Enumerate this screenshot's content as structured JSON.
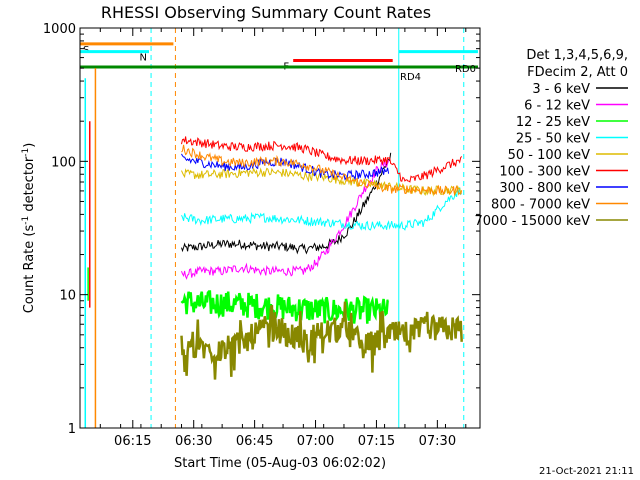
{
  "chart_data": {
    "type": "line",
    "title": "RHESSI Observing Summary Count Rates",
    "xlabel": "Start Time (05-Aug-03 06:02:02)",
    "ylabel_main": "Count Rate (s",
    "ylabel_sup": "-1",
    "ylabel_tail": " detector",
    "ylabel_sup2": "-1",
    "ylabel_close": ")",
    "x_ticks": [
      "06:15",
      "06:30",
      "06:45",
      "07:00",
      "07:15",
      "07:30"
    ],
    "x_tick_minutes": [
      13,
      28,
      43,
      58,
      73,
      88
    ],
    "xlim_minutes": [
      0,
      98.5
    ],
    "y_scale": "log",
    "ylim": [
      1,
      1000
    ],
    "y_ticks": [
      "1",
      "10",
      "100",
      "1000"
    ],
    "legend_header": [
      "Det 1,3,4,5,6,9,",
      "FDecim 2, Att 0"
    ],
    "series": [
      {
        "name": "3 - 6 keV",
        "color": "#000000",
        "x": [
          25,
          30,
          35,
          40,
          45,
          50,
          55,
          60,
          63,
          66,
          69,
          72,
          75,
          76.5
        ],
        "values": [
          22,
          23,
          24,
          24,
          23,
          23,
          22,
          23,
          25,
          30,
          42,
          60,
          90,
          108
        ]
      },
      {
        "name": "6 - 12 keV",
        "color": "#ff00ff",
        "x": [
          25,
          30,
          35,
          40,
          45,
          50,
          55,
          58,
          61,
          64,
          67,
          70,
          73,
          76
        ],
        "values": [
          14,
          15,
          15,
          16,
          15,
          15,
          15,
          17,
          22,
          30,
          42,
          62,
          85,
          100
        ]
      },
      {
        "name": "12 - 25 keV",
        "color": "#00ff00",
        "x": [
          25,
          30,
          35,
          40,
          45,
          50,
          55,
          60,
          65,
          70,
          76
        ],
        "values": [
          9,
          8.5,
          8.6,
          8.4,
          8.2,
          8,
          7.8,
          7.6,
          7.6,
          7.6,
          7.5
        ]
      },
      {
        "name": "25 - 50 keV",
        "color": "#00ffff",
        "x": [
          25,
          30,
          35,
          40,
          45,
          50,
          55,
          60,
          65,
          70,
          76,
          80,
          85,
          90,
          94
        ],
        "values": [
          38,
          36,
          37,
          37,
          38,
          37,
          36,
          35,
          34,
          33,
          33,
          33,
          35,
          50,
          62
        ]
      },
      {
        "name": "50 - 100 keV",
        "color": "#ddbb00",
        "x": [
          25,
          30,
          35,
          40,
          45,
          50,
          55,
          60,
          65,
          70,
          76,
          80,
          85,
          90,
          94
        ],
        "values": [
          80,
          79,
          80,
          82,
          83,
          82,
          78,
          76,
          72,
          68,
          65,
          62,
          60,
          61,
          60
        ]
      },
      {
        "name": "100 - 300 keV",
        "color": "#ff0000",
        "x": [
          25,
          30,
          35,
          40,
          45,
          50,
          55,
          60,
          65,
          70,
          76,
          80,
          85,
          90,
          94
        ],
        "values": [
          145,
          138,
          130,
          128,
          130,
          132,
          125,
          110,
          102,
          101,
          103,
          70,
          78,
          92,
          102
        ]
      },
      {
        "name": "300 - 800 keV",
        "color": "#0000ff",
        "x": [
          25,
          30,
          35,
          40,
          45,
          50,
          55,
          60,
          65,
          70,
          76
        ],
        "values": [
          105,
          98,
          92,
          90,
          98,
          100,
          90,
          80,
          78,
          80,
          85
        ]
      },
      {
        "name": "800 - 7000 keV",
        "color": "#ff8800",
        "x": [
          25,
          30,
          35,
          40,
          45,
          50,
          55,
          60,
          65,
          70,
          76,
          80,
          85,
          90,
          94
        ],
        "values": [
          125,
          110,
          100,
          97,
          100,
          100,
          95,
          85,
          75,
          68,
          62,
          62,
          61,
          60,
          61
        ]
      },
      {
        "name": "7000 - 15000 keV",
        "color": "#888800",
        "x": [
          25,
          30,
          35,
          40,
          45,
          50,
          55,
          60,
          65,
          70,
          76,
          80,
          85,
          90,
          94
        ],
        "values": [
          4.2,
          4,
          3.8,
          4.3,
          5.5,
          5.4,
          4.4,
          5.3,
          5.4,
          4,
          5,
          5,
          5.5,
          5.5,
          5.5
        ]
      }
    ],
    "flag_bars": [
      {
        "label": "S",
        "color": "#ff8800",
        "x_start": 0,
        "x_end": 23,
        "value": 760
      },
      {
        "label": "N",
        "color": "#00ffff",
        "x_start": 0,
        "x_end": 17,
        "value": 665
      },
      {
        "label": "F",
        "color": "#ff0000",
        "x_start": 52.5,
        "x_end": 77,
        "value": 570
      },
      {
        "label": "",
        "color": "#00ffff",
        "x_start": 78.5,
        "x_end": 98,
        "value": 665
      },
      {
        "label": "RD0",
        "color": "#008800",
        "x_start": 0,
        "x_end": 98,
        "value": 510
      }
    ],
    "flag_label_rd4": "RD4",
    "vlines": [
      {
        "x": 17.5,
        "color": "#00ffff",
        "dashed": true
      },
      {
        "x": 23.5,
        "color": "#ff8800",
        "dashed": true
      },
      {
        "x": 78.5,
        "color": "#00ffff",
        "dashed": false
      },
      {
        "x": 94.5,
        "color": "#00ffff",
        "dashed": true
      }
    ],
    "timestamp": "21-Oct-2021 21:11"
  }
}
